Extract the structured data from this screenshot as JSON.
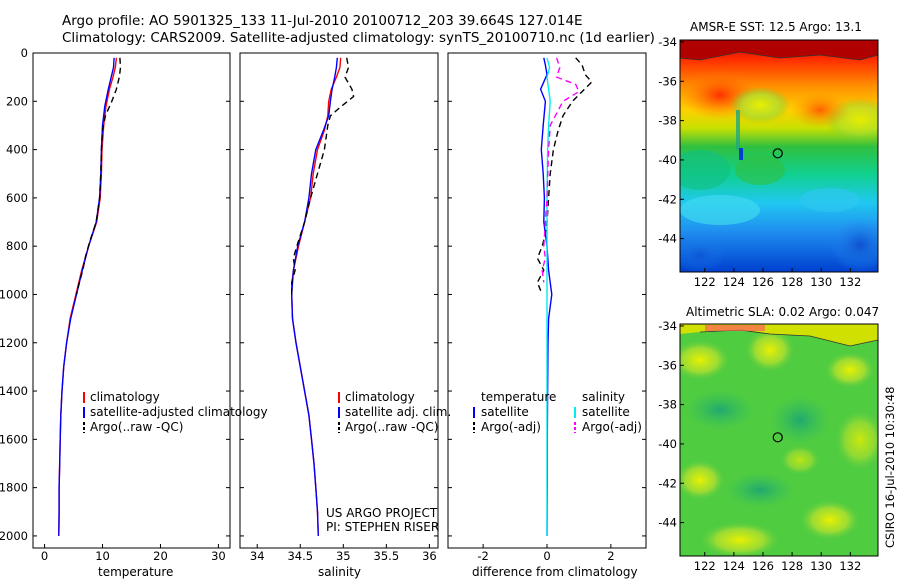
{
  "header": {
    "title_line1": "Argo profile: AO 5901325_133 11-Jul-2010 20100712_203 39.664S 127.014E",
    "title_line2": "Climatology: CARS2009. Satellite-adjusted climatology: synTS_20100710.nc (1d earlier)"
  },
  "credit": "CSIRO 16-Jul-2010 10:30:48",
  "project": {
    "line1": "US ARGO PROJECT",
    "line2": "PI: STEPHEN RISER"
  },
  "chart_data": [
    {
      "id": "temperature",
      "type": "line",
      "xlabel": "temperature",
      "xlim": [
        -2,
        32
      ],
      "ylim": [
        0,
        2050
      ],
      "ylabel": "",
      "y_reversed": true,
      "xticks": [
        "0",
        "10",
        "20",
        "30"
      ],
      "yticks": [
        "0",
        "200",
        "400",
        "600",
        "800",
        "1000",
        "1200",
        "1400",
        "1600",
        "1800",
        "2000"
      ],
      "legend": [
        "climatology",
        "satellite-adjusted climatology",
        "Argo(..raw -QC)"
      ],
      "series": [
        {
          "name": "climatology",
          "color": "#ff0000",
          "dash": "",
          "points": [
            [
              12.4,
              20
            ],
            [
              12.2,
              60
            ],
            [
              11.8,
              100
            ],
            [
              11.2,
              150
            ],
            [
              10.6,
              220
            ],
            [
              10.2,
              300
            ],
            [
              9.9,
              400
            ],
            [
              9.8,
              500
            ],
            [
              9.6,
              600
            ],
            [
              9.0,
              700
            ],
            [
              7.6,
              800
            ],
            [
              6.4,
              900
            ],
            [
              5.4,
              1000
            ],
            [
              4.4,
              1100
            ],
            [
              3.8,
              1200
            ],
            [
              3.3,
              1300
            ],
            [
              3.0,
              1400
            ],
            [
              2.8,
              1500
            ],
            [
              2.7,
              1600
            ],
            [
              2.6,
              1700
            ],
            [
              2.5,
              1800
            ],
            [
              2.5,
              1900
            ],
            [
              2.45,
              2000
            ]
          ]
        },
        {
          "name": "satellite-adjusted climatology",
          "color": "#0000ff",
          "dash": "",
          "points": [
            [
              12.0,
              20
            ],
            [
              11.9,
              60
            ],
            [
              11.5,
              100
            ],
            [
              11.0,
              150
            ],
            [
              10.4,
              220
            ],
            [
              10.0,
              300
            ],
            [
              9.8,
              400
            ],
            [
              9.7,
              500
            ],
            [
              9.5,
              600
            ],
            [
              8.9,
              700
            ],
            [
              7.6,
              800
            ],
            [
              6.5,
              900
            ],
            [
              5.5,
              1000
            ],
            [
              4.5,
              1100
            ],
            [
              3.8,
              1200
            ],
            [
              3.3,
              1300
            ],
            [
              3.0,
              1400
            ],
            [
              2.8,
              1500
            ],
            [
              2.7,
              1600
            ],
            [
              2.6,
              1700
            ],
            [
              2.5,
              1800
            ],
            [
              2.5,
              1900
            ],
            [
              2.45,
              2000
            ]
          ]
        },
        {
          "name": "Argo(..raw -QC)",
          "color": "#000000",
          "dash": "6,4",
          "points": [
            [
              13.0,
              20
            ],
            [
              13.1,
              60
            ],
            [
              12.9,
              100
            ],
            [
              12.4,
              150
            ],
            [
              11.6,
              200
            ],
            [
              10.5,
              260
            ],
            [
              10.0,
              320
            ],
            [
              9.8,
              400
            ],
            [
              9.7,
              500
            ],
            [
              9.5,
              600
            ],
            [
              8.9,
              700
            ],
            [
              7.8,
              780
            ],
            [
              7.0,
              850
            ],
            [
              6.6,
              900
            ],
            [
              6.0,
              950
            ],
            [
              5.5,
              1000
            ]
          ]
        }
      ]
    },
    {
      "id": "salinity",
      "type": "line",
      "xlabel": "salinity",
      "xlim": [
        33.8,
        36.1
      ],
      "ylim": [
        0,
        2050
      ],
      "y_reversed": true,
      "xticks": [
        "34",
        "34.5",
        "35",
        "35.5",
        "36"
      ],
      "legend": [
        "climatology",
        "satellite adj. clim.",
        "Argo(..raw -QC)"
      ],
      "series": [
        {
          "name": "climatology",
          "color": "#ff0000",
          "dash": "",
          "points": [
            [
              34.97,
              20
            ],
            [
              34.96,
              60
            ],
            [
              34.92,
              100
            ],
            [
              34.86,
              150
            ],
            [
              34.83,
              200
            ],
            [
              34.82,
              260
            ],
            [
              34.78,
              320
            ],
            [
              34.7,
              400
            ],
            [
              34.65,
              500
            ],
            [
              34.62,
              600
            ],
            [
              34.55,
              700
            ],
            [
              34.48,
              800
            ],
            [
              34.42,
              900
            ],
            [
              34.4,
              960
            ],
            [
              34.4,
              1000
            ],
            [
              34.41,
              1100
            ],
            [
              34.45,
              1200
            ],
            [
              34.5,
              1300
            ],
            [
              34.55,
              1400
            ],
            [
              34.6,
              1500
            ],
            [
              34.63,
              1600
            ],
            [
              34.66,
              1700
            ],
            [
              34.68,
              1800
            ],
            [
              34.7,
              1900
            ],
            [
              34.71,
              2000
            ]
          ]
        },
        {
          "name": "satellite adj. clim.",
          "color": "#0000ff",
          "dash": "",
          "points": [
            [
              34.93,
              20
            ],
            [
              34.92,
              60
            ],
            [
              34.9,
              100
            ],
            [
              34.87,
              150
            ],
            [
              34.85,
              200
            ],
            [
              34.83,
              260
            ],
            [
              34.77,
              320
            ],
            [
              34.68,
              400
            ],
            [
              34.63,
              500
            ],
            [
              34.6,
              600
            ],
            [
              34.55,
              700
            ],
            [
              34.47,
              800
            ],
            [
              34.42,
              900
            ],
            [
              34.4,
              1000
            ],
            [
              34.41,
              1100
            ],
            [
              34.45,
              1200
            ],
            [
              34.5,
              1300
            ],
            [
              34.55,
              1400
            ],
            [
              34.6,
              1500
            ],
            [
              34.63,
              1600
            ],
            [
              34.66,
              1700
            ],
            [
              34.68,
              1800
            ],
            [
              34.7,
              1900
            ],
            [
              34.71,
              2000
            ]
          ]
        },
        {
          "name": "Argo(..raw -QC)",
          "color": "#000000",
          "dash": "6,4",
          "points": [
            [
              35.04,
              20
            ],
            [
              35.06,
              60
            ],
            [
              35.02,
              100
            ],
            [
              35.1,
              150
            ],
            [
              35.12,
              180
            ],
            [
              34.98,
              220
            ],
            [
              34.85,
              260
            ],
            [
              34.82,
              300
            ],
            [
              34.78,
              400
            ],
            [
              34.7,
              500
            ],
            [
              34.62,
              600
            ],
            [
              34.55,
              700
            ],
            [
              34.46,
              800
            ],
            [
              34.42,
              850
            ],
            [
              34.44,
              900
            ],
            [
              34.4,
              950
            ],
            [
              34.4,
              1000
            ]
          ]
        }
      ]
    },
    {
      "id": "difference",
      "type": "line",
      "xlabel": "difference from climatology",
      "xlim": [
        -3.1,
        3.1
      ],
      "ylim": [
        0,
        2050
      ],
      "y_reversed": true,
      "xticks": [
        "-2",
        "0",
        "2"
      ],
      "legend_title_left": "temperature",
      "legend_title_right": "salinity",
      "legend_left": [
        "satellite",
        "Argo(-adj)"
      ],
      "legend_right": [
        "satellite",
        "Argo(-adj)"
      ],
      "series": [
        {
          "name": "temperature satellite",
          "color": "#0000ff",
          "dash": "",
          "points": [
            [
              -0.1,
              20
            ],
            [
              -0.05,
              50
            ],
            [
              0.0,
              90
            ],
            [
              -0.2,
              150
            ],
            [
              -0.05,
              200
            ],
            [
              -0.12,
              300
            ],
            [
              -0.18,
              400
            ],
            [
              -0.12,
              500
            ],
            [
              -0.08,
              600
            ],
            [
              -0.1,
              700
            ],
            [
              0.0,
              800
            ],
            [
              0.05,
              900
            ],
            [
              0.1,
              950
            ],
            [
              0.15,
              1000
            ],
            [
              0.1,
              1050
            ],
            [
              0.05,
              1100
            ],
            [
              0.03,
              1200
            ],
            [
              0.02,
              1400
            ],
            [
              0.01,
              1600
            ],
            [
              0.01,
              1800
            ],
            [
              0.0,
              2000
            ]
          ]
        },
        {
          "name": "temperature Argo(-adj)",
          "color": "#000000",
          "dash": "6,4",
          "points": [
            [
              0.9,
              20
            ],
            [
              1.1,
              50
            ],
            [
              1.2,
              90
            ],
            [
              1.4,
              120
            ],
            [
              1.1,
              160
            ],
            [
              0.8,
              200
            ],
            [
              0.5,
              260
            ],
            [
              0.35,
              320
            ],
            [
              0.2,
              400
            ],
            [
              0.1,
              500
            ],
            [
              0.05,
              600
            ],
            [
              0.0,
              700
            ],
            [
              -0.05,
              750
            ],
            [
              -0.15,
              800
            ],
            [
              -0.3,
              850
            ],
            [
              -0.1,
              900
            ],
            [
              -0.3,
              950
            ],
            [
              -0.15,
              1000
            ]
          ]
        },
        {
          "name": "salinity satellite",
          "color": "#00eeee",
          "dash": "",
          "points": [
            [
              0.0,
              20
            ],
            [
              0.08,
              60
            ],
            [
              0.0,
              100
            ],
            [
              0.05,
              150
            ],
            [
              0.1,
              200
            ],
            [
              0.05,
              300
            ],
            [
              0.02,
              400
            ],
            [
              0.0,
              600
            ],
            [
              0.0,
              800
            ],
            [
              0.0,
              1000
            ],
            [
              0.0,
              1200
            ],
            [
              0.0,
              1400
            ],
            [
              0.0,
              1600
            ],
            [
              0.0,
              1800
            ],
            [
              0.0,
              2000
            ]
          ]
        },
        {
          "name": "salinity Argo(-adj)",
          "color": "#ff00ff",
          "dash": "6,4",
          "points": [
            [
              0.3,
              20
            ],
            [
              0.4,
              60
            ],
            [
              0.3,
              100
            ],
            [
              0.9,
              130
            ],
            [
              1.0,
              160
            ],
            [
              0.5,
              200
            ],
            [
              0.3,
              250
            ],
            [
              0.1,
              300
            ],
            [
              0.05,
              400
            ],
            [
              0.0,
              600
            ],
            [
              -0.05,
              700
            ],
            [
              -0.1,
              800
            ],
            [
              -0.05,
              850
            ],
            [
              -0.15,
              900
            ],
            [
              -0.1,
              950
            ]
          ]
        }
      ]
    },
    {
      "id": "sst_map",
      "type": "heatmap",
      "title": "AMSR-E SST: 12.5 Argo: 13.1",
      "yticks": [
        "-34",
        "-36",
        "-38",
        "-40",
        "-42",
        "-44"
      ],
      "xticks": [
        "122",
        "124",
        "126",
        "128",
        "130",
        "132"
      ],
      "lat_range": [
        -45.7,
        -33.9
      ],
      "lon_range": [
        120.3,
        133.9
      ],
      "argo_position": {
        "lon": 127.014,
        "lat": -39.664
      }
    },
    {
      "id": "sla_map",
      "type": "heatmap",
      "title": "Altimetric SLA: 0.02 Argo: 0.047",
      "yticks": [
        "-34",
        "-36",
        "-38",
        "-40",
        "-42",
        "-44"
      ],
      "xticks": [
        "122",
        "124",
        "126",
        "128",
        "130",
        "132"
      ],
      "lat_range": [
        -45.7,
        -33.9
      ],
      "lon_range": [
        120.3,
        133.9
      ],
      "argo_position": {
        "lon": 127.014,
        "lat": -39.664
      }
    }
  ]
}
